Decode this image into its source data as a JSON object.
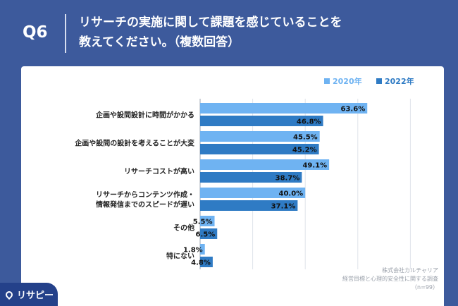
{
  "header": {
    "question_number": "Q6",
    "question_line1": "リサーチの実施に関して課題を感じていることを",
    "question_line2": "教えてください。（複数回答）"
  },
  "brand": {
    "name": "リサピー"
  },
  "footnote": {
    "line1": "株式会社カルチャリア",
    "line2": "経営目標と心理的安全性に関する調査",
    "line3": "（n=99）"
  },
  "colors": {
    "background": "#3d5a9c",
    "series_2020": "#6fb3f2",
    "series_2022": "#2f7bc4"
  },
  "chart_data": {
    "type": "bar",
    "orientation": "horizontal",
    "categories": [
      [
        "企画や設問設計に時間がかかる"
      ],
      [
        "企画や設問の設計を考えることが大変"
      ],
      [
        "リサーチコストが高い"
      ],
      [
        "リサーチからコンテンツ作成・",
        "情報発信までのスピードが遅い"
      ],
      [
        "その他"
      ],
      [
        "特にない"
      ]
    ],
    "series": [
      {
        "name": "2020年",
        "values": [
          63.6,
          45.5,
          49.1,
          40.0,
          5.5,
          1.8
        ],
        "labels": [
          "63.6%",
          "45.5%",
          "49.1%",
          "40.0%",
          "5.5%",
          "1.8%"
        ]
      },
      {
        "name": "2022年",
        "values": [
          46.8,
          45.2,
          38.7,
          37.1,
          6.5,
          4.8
        ],
        "labels": [
          "46.8%",
          "45.2%",
          "38.7%",
          "37.1%",
          "6.5%",
          "4.8%"
        ]
      }
    ],
    "legend_position": "top-right",
    "grid": true
  }
}
